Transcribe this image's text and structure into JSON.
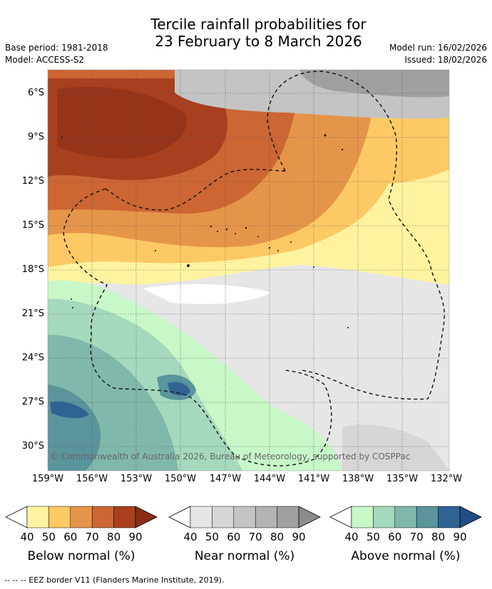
{
  "title_line1": "Tercile rainfall probabilities for",
  "title_line2": "23 February to 8 March 2026",
  "meta": {
    "base_period": "Base period: 1981-2018",
    "model": "Model: ACCESS-S2",
    "model_run": "Model run: 16/02/2026",
    "issued": "Issued: 18/02/2026"
  },
  "lat_ticks": [
    "6°S",
    "9°S",
    "12°S",
    "15°S",
    "18°S",
    "21°S",
    "24°S",
    "27°S",
    "30°S"
  ],
  "lon_ticks": [
    "159°W",
    "156°W",
    "153°W",
    "150°W",
    "147°W",
    "144°W",
    "141°W",
    "138°W",
    "135°W",
    "132°W"
  ],
  "copyright": "© Commonwealth of Australia 2026, Bureau of Meteorology, supported by COSPPac",
  "colorbars": [
    {
      "label": "Below normal (%)",
      "colors": [
        "#fff3a0",
        "#fdc965",
        "#e5954a",
        "#cc6633",
        "#a8401f",
        "#8a2d15"
      ]
    },
    {
      "label": "Near normal (%)",
      "colors": [
        "#e6e6e6",
        "#d6d6d6",
        "#c4c4c4",
        "#b3b3b3",
        "#a0a0a0",
        "#8c8c8c"
      ]
    },
    {
      "label": "Above normal (%)",
      "colors": [
        "#c8f7c8",
        "#a5d9bd",
        "#80b8ab",
        "#5a949c",
        "#2f6394",
        "#1f4f86"
      ]
    }
  ],
  "colorbar_ticks": [
    "40",
    "50",
    "60",
    "70",
    "80",
    "90"
  ],
  "footer": "--  --  -- EEZ border V11 (Flanders Marine Institute, 2019)."
}
